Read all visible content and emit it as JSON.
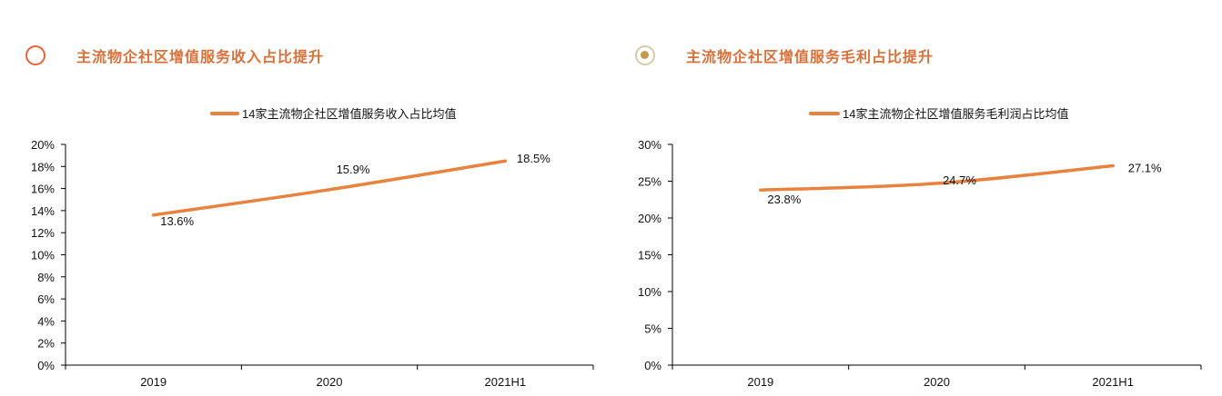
{
  "panels": [
    {
      "title": "主流物企社区增值服务收入占比提升",
      "icon": "circle-outline-icon"
    },
    {
      "title": "主流物企社区增值服务毛利占比提升",
      "icon": "circle-dot-icon"
    }
  ],
  "colors": {
    "accent": "#e8823f",
    "title": "#d9703a",
    "axis": "#000000"
  },
  "chart_data": [
    {
      "type": "line",
      "categories": [
        "2019",
        "2020",
        "2021H1"
      ],
      "series": [
        {
          "name": "14家主流物企社区增值服务收入占比均值",
          "values": [
            13.6,
            15.9,
            18.5
          ]
        }
      ],
      "data_labels": [
        "13.6%",
        "15.9%",
        "18.5%"
      ],
      "ylim": [
        0,
        20
      ],
      "yticks": [
        0,
        2,
        4,
        6,
        8,
        10,
        12,
        14,
        16,
        18,
        20
      ],
      "ytick_labels": [
        "0%",
        "2%",
        "4%",
        "6%",
        "8%",
        "10%",
        "12%",
        "14%",
        "16%",
        "18%",
        "20%"
      ],
      "legend": "top-center",
      "grid": false
    },
    {
      "type": "line",
      "categories": [
        "2019",
        "2020",
        "2021H1"
      ],
      "series": [
        {
          "name": "14家主流物企社区增值服务毛利润占比均值",
          "values": [
            23.8,
            24.7,
            27.1
          ]
        }
      ],
      "data_labels": [
        "23.8%",
        "24.7%",
        "27.1%"
      ],
      "ylim": [
        0,
        30
      ],
      "yticks": [
        0,
        5,
        10,
        15,
        20,
        25,
        30
      ],
      "ytick_labels": [
        "0%",
        "5%",
        "10%",
        "15%",
        "20%",
        "25%",
        "30%"
      ],
      "legend": "top-center",
      "grid": false
    }
  ]
}
